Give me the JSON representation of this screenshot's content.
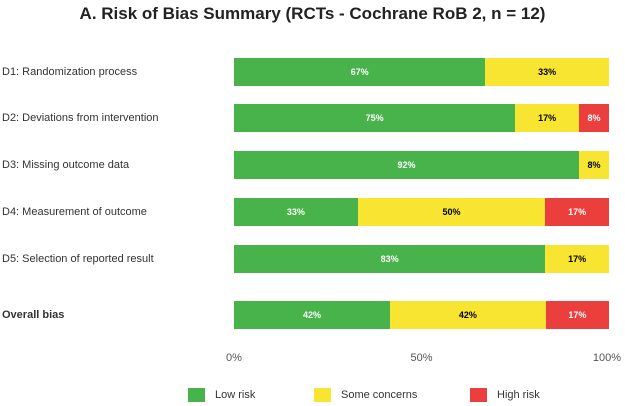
{
  "chart_data": {
    "type": "stacked-bar-horizontal",
    "title": "A. Risk of Bias Summary (RCTs - Cochrane RoB 2, n = 12)",
    "categories": [
      "D1: Randomization process",
      "D2: Deviations from intervention",
      "D3: Missing outcome data",
      "D4: Measurement of outcome",
      "D5: Selection of reported result",
      "Overall bias"
    ],
    "series": [
      {
        "name": "Low risk",
        "color": "#48b34a",
        "values": [
          67,
          75,
          92,
          33,
          83,
          42
        ],
        "labels": [
          "67%",
          "75%",
          "92%",
          "33%",
          "83%",
          "42%"
        ]
      },
      {
        "name": "Some concerns",
        "color": "#f7e531",
        "values": [
          33,
          17,
          8,
          50,
          17,
          42
        ],
        "labels": [
          "33%",
          "17%",
          "8%",
          "50%",
          "17%",
          "42%"
        ]
      },
      {
        "name": "High risk",
        "color": "#ea3f3c",
        "values": [
          0,
          8,
          0,
          17,
          0,
          17
        ],
        "labels": [
          "",
          "8%",
          "",
          "17%",
          "",
          "17%"
        ]
      }
    ],
    "xlim": [
      0,
      100
    ],
    "xticks": [
      "0%",
      "50%",
      "100%"
    ],
    "legend": [
      "Low risk",
      "Some concerns",
      "High risk"
    ],
    "legend_position": "bottom"
  }
}
